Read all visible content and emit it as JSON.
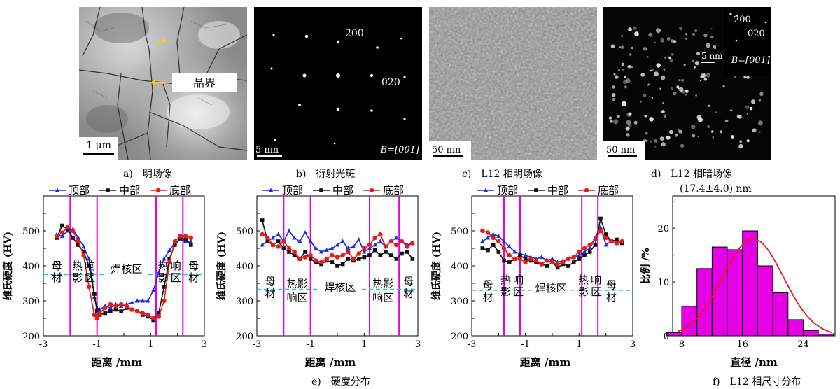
{
  "micrographs": {
    "a": {
      "scale": "1 µm",
      "grain_boundary": "晶界"
    },
    "b": {
      "scale": "5 nm",
      "spot1": "2̄00",
      "spot2": "020",
      "zone": "B=[001]"
    },
    "c": {
      "scale": "50 nm"
    },
    "d": {
      "scale": "50 nm",
      "inset_scale": "5 nm",
      "spot1": "2̄00",
      "spot2": "020",
      "zone": "B=[001]"
    }
  },
  "captions": {
    "a": "a)　明场像",
    "b": "b)　衍射光斑",
    "c": "c)　L12 相明场像",
    "d": "d)　L12 相暗场像",
    "e": "e)　硬度分布",
    "f": "f)　L12 相尺寸分布"
  },
  "colors": {
    "top": "#1a2ee8",
    "mid": "#111111",
    "bottom": "#e81a1a",
    "zone_line": "#e600e6",
    "dash": "#19c8e6",
    "hist": "#e600e6",
    "fit": "#e81a1a"
  },
  "chart_data": [
    {
      "type": "line",
      "id": "hardness-1",
      "xlabel": "距离 /mm",
      "ylabel": "维氏硬度 (HV)",
      "xlim": [
        -3,
        3
      ],
      "ylim": [
        200,
        600
      ],
      "xticks": [
        -3,
        -1,
        1,
        3
      ],
      "yticks": [
        200,
        300,
        400,
        500
      ],
      "legend": [
        "顶部",
        "中部",
        "底部"
      ],
      "zone_lines": [
        -2.0,
        -1.0,
        1.2,
        2.2
      ],
      "dashed_y": 375,
      "zone_labels": [
        {
          "text": "母材",
          "x": -2.5,
          "y": 385,
          "vertical": true
        },
        {
          "text": "热影响区",
          "x": -1.5,
          "y": 385,
          "vertical": true
        },
        {
          "text": "焊核区",
          "x": 0.1,
          "y": 385,
          "vertical": false
        },
        {
          "text": "热影响区",
          "x": 1.7,
          "y": 385,
          "vertical": true
        },
        {
          "text": "母材",
          "x": 2.6,
          "y": 385,
          "vertical": true
        }
      ],
      "series": [
        {
          "name": "顶部",
          "x": [
            -2.5,
            -2.3,
            -2.1,
            -1.9,
            -1.7,
            -1.5,
            -1.3,
            -1.2,
            -1.1,
            -1.0,
            -0.9,
            -0.7,
            -0.5,
            -0.3,
            -0.1,
            0.1,
            0.3,
            0.5,
            0.7,
            0.9,
            1.1,
            1.3,
            1.5,
            1.7,
            1.9,
            2.1,
            2.3,
            2.5
          ],
          "y": [
            490,
            485,
            500,
            505,
            480,
            455,
            420,
            375,
            310,
            280,
            275,
            285,
            280,
            290,
            285,
            290,
            295,
            300,
            300,
            300,
            330,
            380,
            420,
            445,
            465,
            475,
            470,
            470
          ]
        },
        {
          "name": "中部",
          "x": [
            -2.5,
            -2.3,
            -2.1,
            -1.9,
            -1.7,
            -1.5,
            -1.3,
            -1.1,
            -1.0,
            -0.9,
            -0.7,
            -0.5,
            -0.3,
            -0.1,
            0.1,
            0.3,
            0.5,
            0.7,
            0.9,
            1.1,
            1.3,
            1.5,
            1.7,
            1.9,
            2.1,
            2.3,
            2.5
          ],
          "y": [
            480,
            515,
            505,
            480,
            460,
            440,
            400,
            320,
            270,
            260,
            265,
            270,
            275,
            270,
            280,
            275,
            270,
            260,
            255,
            245,
            265,
            340,
            420,
            460,
            480,
            475,
            460
          ]
        },
        {
          "name": "底部",
          "x": [
            -2.5,
            -2.3,
            -2.1,
            -1.9,
            -1.7,
            -1.5,
            -1.3,
            -1.1,
            -1.0,
            -0.9,
            -0.7,
            -0.5,
            -0.3,
            -0.1,
            0.1,
            0.3,
            0.5,
            0.7,
            0.9,
            1.1,
            1.3,
            1.5,
            1.7,
            1.9,
            2.1,
            2.3,
            2.5
          ],
          "y": [
            485,
            495,
            510,
            500,
            470,
            430,
            340,
            260,
            250,
            265,
            280,
            290,
            285,
            290,
            285,
            275,
            270,
            265,
            260,
            250,
            255,
            300,
            410,
            470,
            485,
            485,
            480
          ]
        }
      ]
    },
    {
      "type": "line",
      "id": "hardness-2",
      "xlabel": "距离 /mm",
      "ylabel": "维氏硬度 (HV)",
      "xlim": [
        -3,
        3
      ],
      "ylim": [
        200,
        600
      ],
      "xticks": [
        -3,
        -1,
        1,
        3
      ],
      "yticks": [
        200,
        300,
        400,
        500
      ],
      "legend": [
        "顶部",
        "中部",
        "底部"
      ],
      "zone_lines": [
        -2.0,
        -1.0,
        1.2,
        2.3
      ],
      "dashed_y": 333,
      "zone_labels": [
        {
          "text": "母材",
          "x": -2.5,
          "y": 340,
          "vertical": true
        },
        {
          "text": "热影响区",
          "x": -1.5,
          "y": 335,
          "vertical": false,
          "two_line": true
        },
        {
          "text": "焊核区",
          "x": 0.1,
          "y": 333,
          "vertical": false
        },
        {
          "text": "热影响区",
          "x": 1.7,
          "y": 335,
          "vertical": false,
          "two_line": true
        },
        {
          "text": "母材",
          "x": 2.65,
          "y": 340,
          "vertical": true
        }
      ],
      "series": [
        {
          "name": "顶部",
          "x": [
            -2.8,
            -2.6,
            -2.4,
            -2.2,
            -2.0,
            -1.8,
            -1.6,
            -1.4,
            -1.2,
            -1.0,
            -0.8,
            -0.6,
            -0.4,
            -0.2,
            0.0,
            0.2,
            0.4,
            0.6,
            0.8,
            1.0,
            1.2,
            1.4,
            1.6,
            1.8,
            2.0,
            2.2,
            2.4,
            2.6,
            2.8
          ],
          "y": [
            460,
            470,
            480,
            490,
            470,
            500,
            480,
            470,
            495,
            470,
            450,
            440,
            445,
            450,
            460,
            470,
            450,
            455,
            475,
            440,
            450,
            460,
            470,
            455,
            470,
            480,
            470,
            460,
            465
          ]
        },
        {
          "name": "中部",
          "x": [
            -2.8,
            -2.6,
            -2.4,
            -2.2,
            -2.0,
            -1.8,
            -1.6,
            -1.4,
            -1.2,
            -1.0,
            -0.8,
            -0.6,
            -0.4,
            -0.2,
            0.0,
            0.2,
            0.4,
            0.6,
            0.8,
            1.0,
            1.2,
            1.4,
            1.6,
            1.8,
            2.0,
            2.2,
            2.4,
            2.6,
            2.8
          ],
          "y": [
            530,
            470,
            460,
            470,
            450,
            440,
            430,
            420,
            440,
            420,
            410,
            405,
            415,
            410,
            400,
            405,
            420,
            415,
            420,
            425,
            430,
            445,
            430,
            440,
            430,
            420,
            435,
            440,
            420
          ]
        },
        {
          "name": "底部",
          "x": [
            -2.8,
            -2.6,
            -2.4,
            -2.2,
            -2.0,
            -1.8,
            -1.6,
            -1.4,
            -1.2,
            -1.0,
            -0.8,
            -0.6,
            -0.4,
            -0.2,
            0.0,
            0.2,
            0.4,
            0.6,
            0.8,
            1.0,
            1.2,
            1.4,
            1.6,
            1.8,
            2.0,
            2.2,
            2.4,
            2.6,
            2.8
          ],
          "y": [
            490,
            480,
            460,
            455,
            470,
            450,
            440,
            420,
            425,
            430,
            415,
            410,
            420,
            430,
            425,
            430,
            440,
            420,
            435,
            450,
            460,
            480,
            490,
            455,
            470,
            460,
            470,
            455,
            465
          ]
        }
      ]
    },
    {
      "type": "line",
      "id": "hardness-3",
      "xlabel": "距离 /mm",
      "ylabel": "维氏硬度 (HV)",
      "xlim": [
        -3,
        3
      ],
      "ylim": [
        200,
        600
      ],
      "xticks": [
        -3,
        -1,
        1,
        3
      ],
      "yticks": [
        200,
        300,
        400,
        500
      ],
      "legend": [
        "顶部",
        "中部",
        "底部"
      ],
      "zone_lines": [
        -1.8,
        -1.2,
        1.1,
        1.7
      ],
      "dashed_y": 330,
      "zone_labels": [
        {
          "text": "母材",
          "x": -2.4,
          "y": 330,
          "vertical": true
        },
        {
          "text": "热影响区",
          "x": -1.5,
          "y": 345,
          "vertical": true
        },
        {
          "text": "焊核区",
          "x": -0.05,
          "y": 330,
          "vertical": false
        },
        {
          "text": "热影响区",
          "x": 1.4,
          "y": 345,
          "vertical": true
        },
        {
          "text": "母材",
          "x": 2.2,
          "y": 330,
          "vertical": true
        }
      ],
      "series": [
        {
          "name": "顶部",
          "x": [
            -2.6,
            -2.4,
            -2.2,
            -2.0,
            -1.8,
            -1.6,
            -1.4,
            -1.2,
            -1.0,
            -0.8,
            -0.6,
            -0.4,
            -0.2,
            0.0,
            0.2,
            0.4,
            0.6,
            0.8,
            1.0,
            1.2,
            1.4,
            1.6,
            1.8,
            2.0,
            2.2,
            2.4,
            2.6
          ],
          "y": [
            470,
            480,
            490,
            485,
            470,
            455,
            440,
            435,
            430,
            425,
            420,
            425,
            415,
            420,
            410,
            415,
            420,
            425,
            430,
            440,
            450,
            480,
            510,
            460,
            470,
            465,
            470
          ]
        },
        {
          "name": "中部",
          "x": [
            -2.6,
            -2.4,
            -2.2,
            -2.0,
            -1.8,
            -1.6,
            -1.4,
            -1.2,
            -1.0,
            -0.8,
            -0.6,
            -0.4,
            -0.2,
            0.0,
            0.2,
            0.4,
            0.6,
            0.8,
            1.0,
            1.2,
            1.4,
            1.6,
            1.8,
            2.0,
            2.2,
            2.4,
            2.6
          ],
          "y": [
            450,
            445,
            460,
            440,
            415,
            410,
            420,
            430,
            420,
            415,
            410,
            405,
            400,
            410,
            395,
            405,
            400,
            410,
            420,
            430,
            440,
            460,
            535,
            490,
            470,
            475,
            465
          ]
        },
        {
          "name": "底部",
          "x": [
            -2.6,
            -2.4,
            -2.2,
            -2.0,
            -1.8,
            -1.6,
            -1.4,
            -1.2,
            -1.0,
            -0.8,
            -0.6,
            -0.4,
            -0.2,
            0.0,
            0.2,
            0.4,
            0.6,
            0.8,
            1.0,
            1.2,
            1.4,
            1.6,
            1.8,
            2.0,
            2.2,
            2.4,
            2.6
          ],
          "y": [
            500,
            495,
            480,
            470,
            450,
            430,
            420,
            420,
            410,
            420,
            415,
            405,
            415,
            410,
            405,
            410,
            420,
            425,
            440,
            450,
            460,
            475,
            500,
            480,
            470,
            465,
            470
          ]
        }
      ]
    },
    {
      "type": "bar",
      "id": "size-histogram",
      "xlabel": "直径 /nm",
      "ylabel": "比例 /%",
      "annotation": "(17.4±4.0) nm",
      "xlim": [
        6.8,
        28.2
      ],
      "ylim": [
        0,
        26
      ],
      "xticks": [
        8,
        16,
        24
      ],
      "yticks": [
        0,
        10,
        20
      ],
      "bins": [
        7,
        9,
        11,
        13,
        15,
        17,
        19,
        21,
        23,
        25,
        27
      ],
      "bin_width": 2,
      "values": [
        0.6,
        5.5,
        12.5,
        16.5,
        16.0,
        19.5,
        13.0,
        8.0,
        3.0,
        1.0,
        0.3
      ],
      "fit": {
        "type": "gaussian",
        "mean": 17.4,
        "std": 4.0,
        "peak": 18.0
      }
    }
  ]
}
